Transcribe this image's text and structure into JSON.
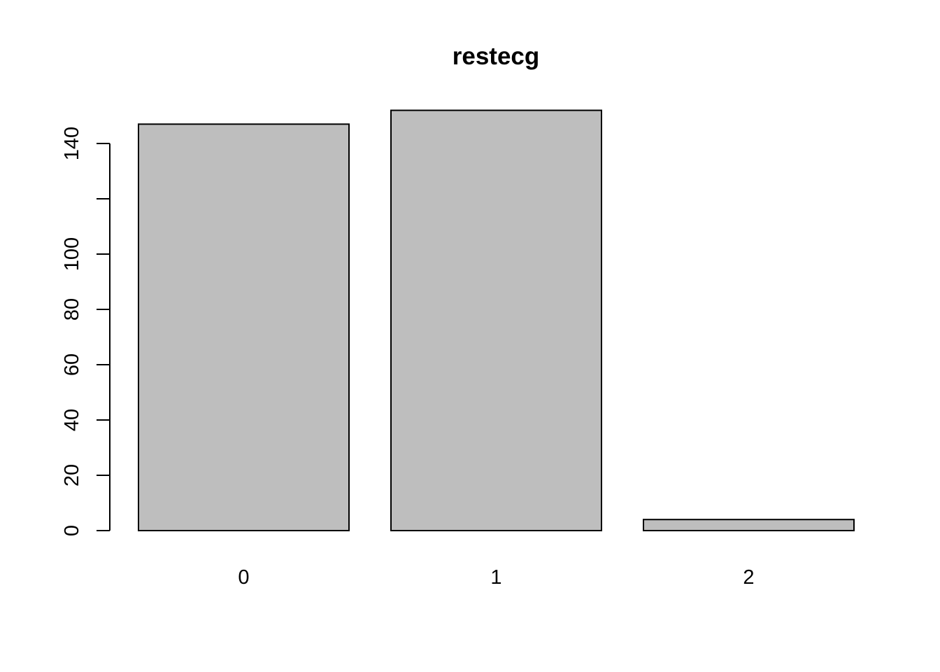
{
  "chart_data": {
    "type": "bar",
    "title": "restecg",
    "xlabel": "",
    "ylabel": "",
    "categories": [
      "0",
      "1",
      "2"
    ],
    "values": [
      147,
      152,
      4
    ],
    "ylim": [
      0,
      152
    ],
    "yticks": [
      0,
      20,
      40,
      60,
      80,
      100,
      120,
      140
    ],
    "ytick_labels": [
      "0",
      "20",
      "40",
      "60",
      "80",
      "100",
      "",
      "140"
    ],
    "grid": false,
    "legend": "none",
    "colors": {
      "bar_fill": "#bebebe",
      "bar_stroke": "#000000"
    }
  }
}
